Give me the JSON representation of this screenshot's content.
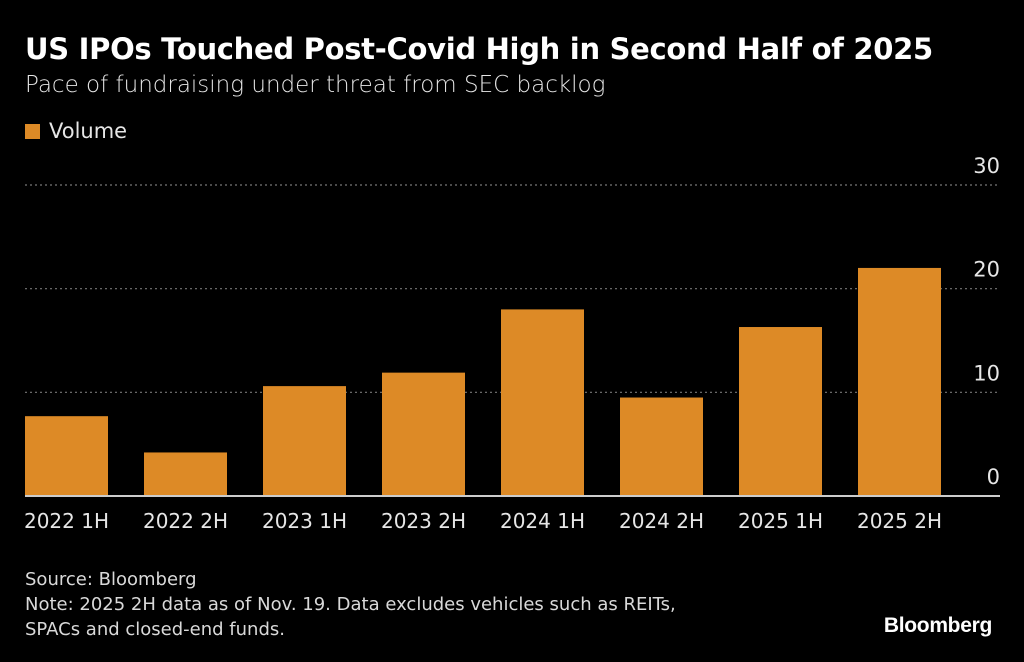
{
  "chart_data": {
    "type": "bar",
    "title": "US IPOs Touched Post-Covid High in Second Half of 2025",
    "subtitle": "Pace of fundraising under threat from SEC backlog",
    "legend": [
      "Volume"
    ],
    "legend_placement": "top-left",
    "categories": [
      "2022 1H",
      "2022 2H",
      "2023 1H",
      "2023 2H",
      "2024 1H",
      "2024 2H",
      "2025 1H",
      "2025 2H"
    ],
    "series": [
      {
        "name": "Volume",
        "values": [
          7.7,
          4.2,
          10.6,
          11.9,
          18.0,
          9.5,
          16.3,
          22.0
        ],
        "color": "#dd8a26"
      }
    ],
    "ylim": [
      0,
      30
    ],
    "yticks": [
      0,
      10,
      20,
      30
    ],
    "y_axis_side": "right",
    "grid": true,
    "source": "Source: Bloomberg",
    "note_lines": [
      "Note: 2025 2H data as of Nov. 19. Data excludes vehicles such as REITs,",
      "SPACs and closed-end funds."
    ]
  },
  "brand": "Bloomberg"
}
